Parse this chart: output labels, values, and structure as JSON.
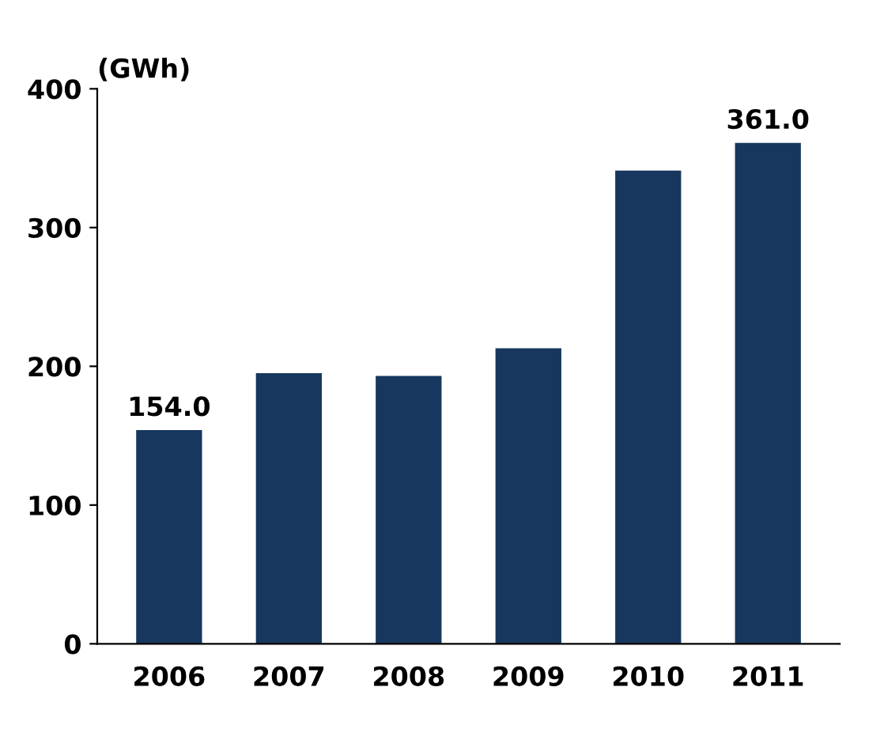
{
  "chart_data": {
    "type": "bar",
    "ylabel": "(GWh)",
    "categories": [
      "2006",
      "2007",
      "2008",
      "2009",
      "2010",
      "2011"
    ],
    "values": [
      154.0,
      195,
      193,
      213,
      341,
      361.0
    ],
    "value_labels": [
      "154.0",
      null,
      null,
      null,
      null,
      "361.0"
    ],
    "color": "#17375e",
    "ylim": [
      0,
      400
    ],
    "yticks": [
      0,
      100,
      200,
      300,
      400
    ],
    "grid": false,
    "legend": false
  }
}
